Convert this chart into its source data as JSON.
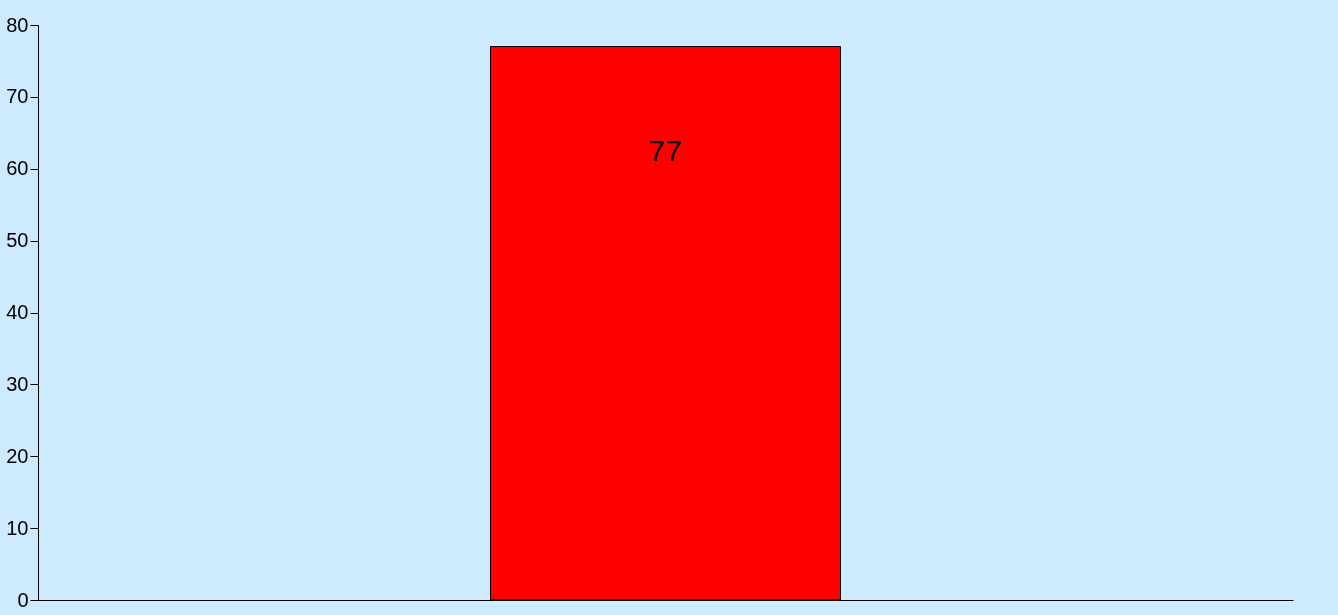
{
  "chart_data": {
    "type": "bar",
    "categories": [
      null
    ],
    "values": [
      77
    ],
    "color": "#ff0000",
    "ylim": [
      0,
      80
    ],
    "yticks": [
      0,
      10,
      20,
      30,
      40,
      50,
      60,
      70,
      80
    ],
    "grid": false,
    "data_labels": true,
    "tick_labels": "y"
  }
}
